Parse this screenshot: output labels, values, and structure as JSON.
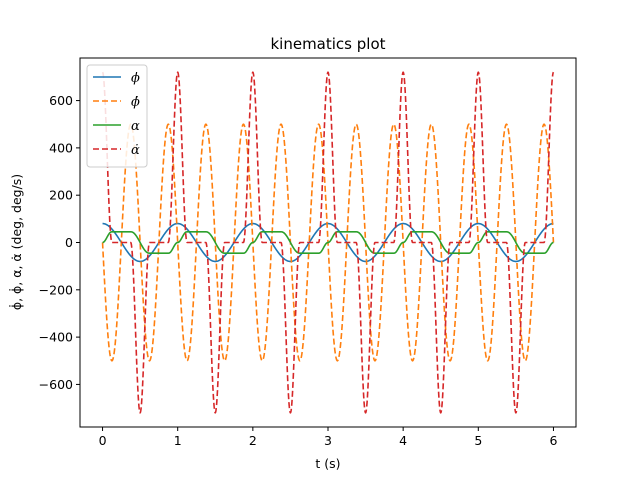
{
  "chart_data": {
    "type": "line",
    "title": "kinematics plot",
    "xlabel": "t (s)",
    "ylabel": "ϕ̇, ϕ̇, α, α̇ (deg, deg/s)",
    "xlim": [
      -0.3,
      6.3
    ],
    "ylim": [
      -780,
      780
    ],
    "x_ticks": [
      0,
      1,
      2,
      3,
      4,
      5,
      6
    ],
    "y_ticks": [
      -600,
      -400,
      -200,
      0,
      200,
      400,
      600
    ],
    "grid": false,
    "legend_position": "top-left",
    "series": [
      {
        "name": "ϕ",
        "color": "#1f77b4",
        "style": "solid",
        "sample_points": [
          [
            0,
            80
          ],
          [
            0.5,
            -80
          ],
          [
            1,
            80
          ],
          [
            1.5,
            -80
          ],
          [
            2,
            80
          ],
          [
            2.5,
            -80
          ],
          [
            3,
            80
          ],
          [
            3.5,
            -80
          ],
          [
            4,
            80
          ],
          [
            4.5,
            -80
          ],
          [
            5,
            80
          ],
          [
            5.5,
            -80
          ],
          [
            6,
            80
          ]
        ]
      },
      {
        "name": "ϕ̇",
        "color": "#ff7f0e",
        "style": "dashed",
        "sample_points": [
          [
            0,
            0
          ],
          [
            0.25,
            -500
          ],
          [
            0.5,
            0
          ],
          [
            0.75,
            500
          ],
          [
            1,
            0
          ],
          [
            1.25,
            -500
          ],
          [
            1.5,
            0
          ],
          [
            1.75,
            500
          ],
          [
            2,
            0
          ],
          [
            2.25,
            -500
          ],
          [
            2.5,
            0
          ],
          [
            2.75,
            500
          ],
          [
            3,
            0
          ],
          [
            3.25,
            -500
          ],
          [
            3.5,
            0
          ],
          [
            3.75,
            500
          ],
          [
            4,
            0
          ],
          [
            4.25,
            -500
          ],
          [
            4.5,
            0
          ],
          [
            4.75,
            500
          ],
          [
            5,
            0
          ],
          [
            5.25,
            -500
          ],
          [
            5.5,
            0
          ],
          [
            5.75,
            500
          ],
          [
            6,
            0
          ]
        ]
      },
      {
        "name": "α",
        "color": "#2ca02c",
        "style": "solid",
        "sample_points": [
          [
            0,
            0
          ],
          [
            0.12,
            45
          ],
          [
            0.38,
            45
          ],
          [
            0.5,
            0
          ],
          [
            0.62,
            -45
          ],
          [
            0.88,
            -45
          ],
          [
            1,
            0
          ],
          [
            1.12,
            45
          ],
          [
            1.38,
            45
          ],
          [
            1.5,
            0
          ],
          [
            6,
            0
          ]
        ]
      },
      {
        "name": "α̇",
        "color": "#d62728",
        "style": "dashed",
        "sample_points": [
          [
            0,
            720
          ],
          [
            0.13,
            0
          ],
          [
            0.37,
            0
          ],
          [
            0.5,
            -720
          ],
          [
            0.63,
            0
          ],
          [
            0.87,
            0
          ],
          [
            1,
            720
          ],
          [
            1.13,
            0
          ],
          [
            1.37,
            0
          ],
          [
            1.5,
            -720
          ],
          [
            6,
            720
          ]
        ]
      }
    ]
  }
}
